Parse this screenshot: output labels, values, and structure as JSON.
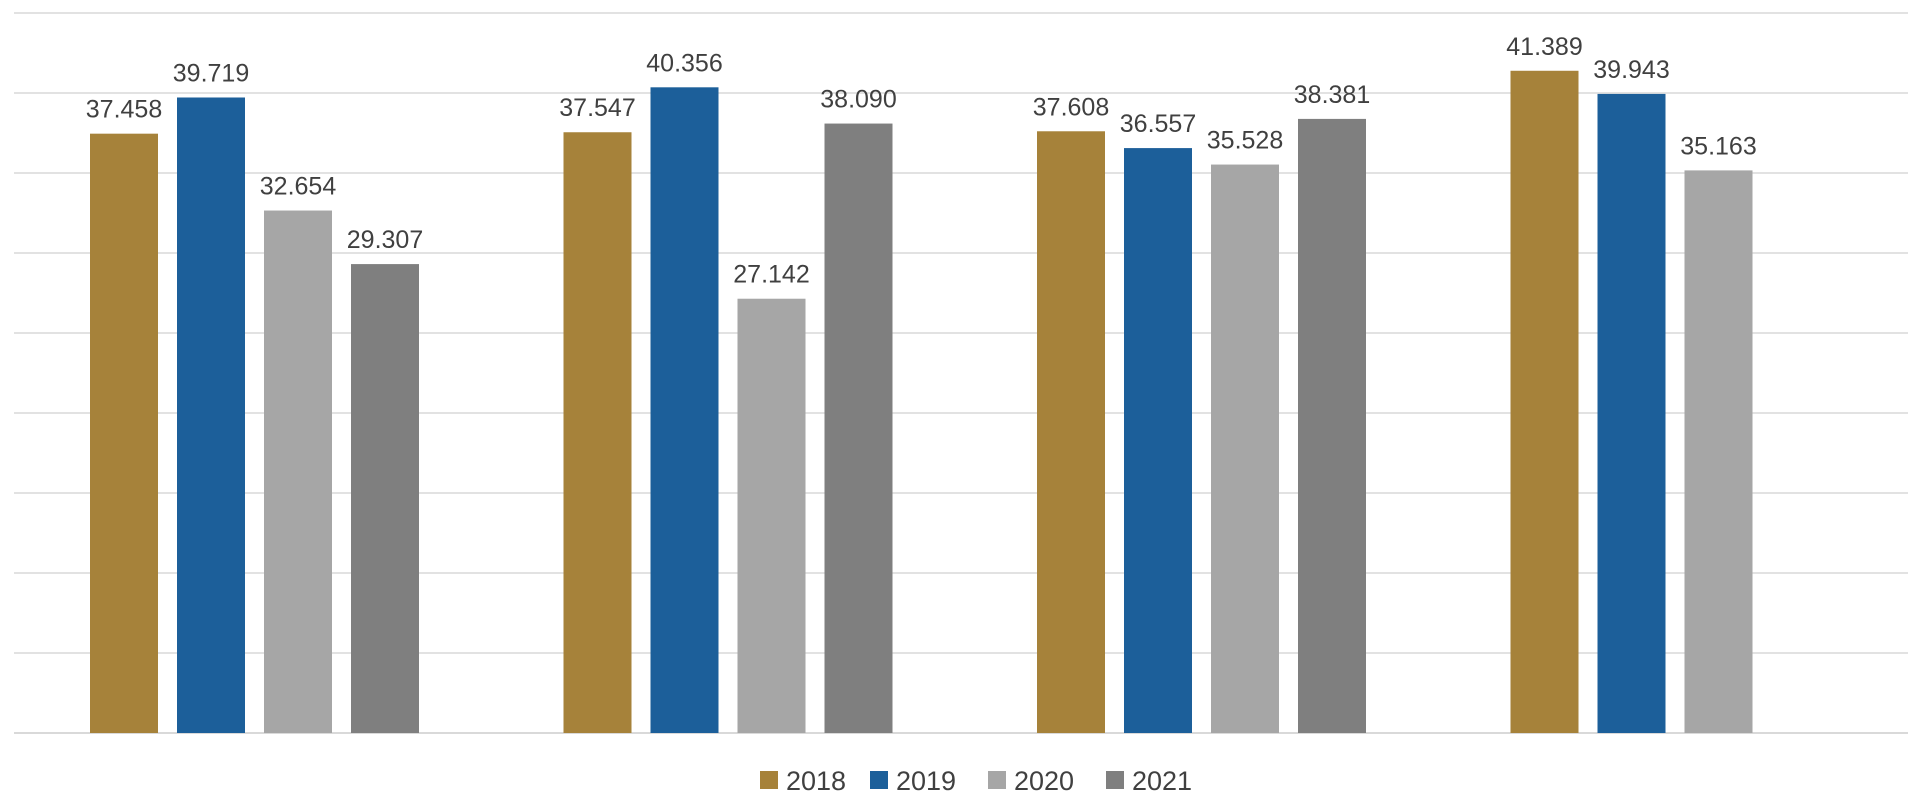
{
  "chart_data": {
    "type": "bar",
    "categories": [
      "",
      "",
      "",
      ""
    ],
    "series": [
      {
        "name": "2018",
        "color": "#A6823A",
        "values": [
          37.458,
          37.547,
          37.608,
          41.389
        ]
      },
      {
        "name": "2019",
        "color": "#1C5F9A",
        "values": [
          39.719,
          40.356,
          36.557,
          39.943
        ]
      },
      {
        "name": "2020",
        "color": "#A6A6A6",
        "values": [
          32.654,
          27.142,
          35.528,
          35.163
        ]
      },
      {
        "name": "2021",
        "color": "#7F7F7F",
        "values": [
          29.307,
          38.09,
          38.381,
          null
        ]
      }
    ],
    "title": "",
    "xlabel": "",
    "ylabel": "",
    "ylim": [
      0,
      45
    ],
    "ytick_step": 5,
    "grid": true,
    "legend_position": "bottom-center"
  }
}
